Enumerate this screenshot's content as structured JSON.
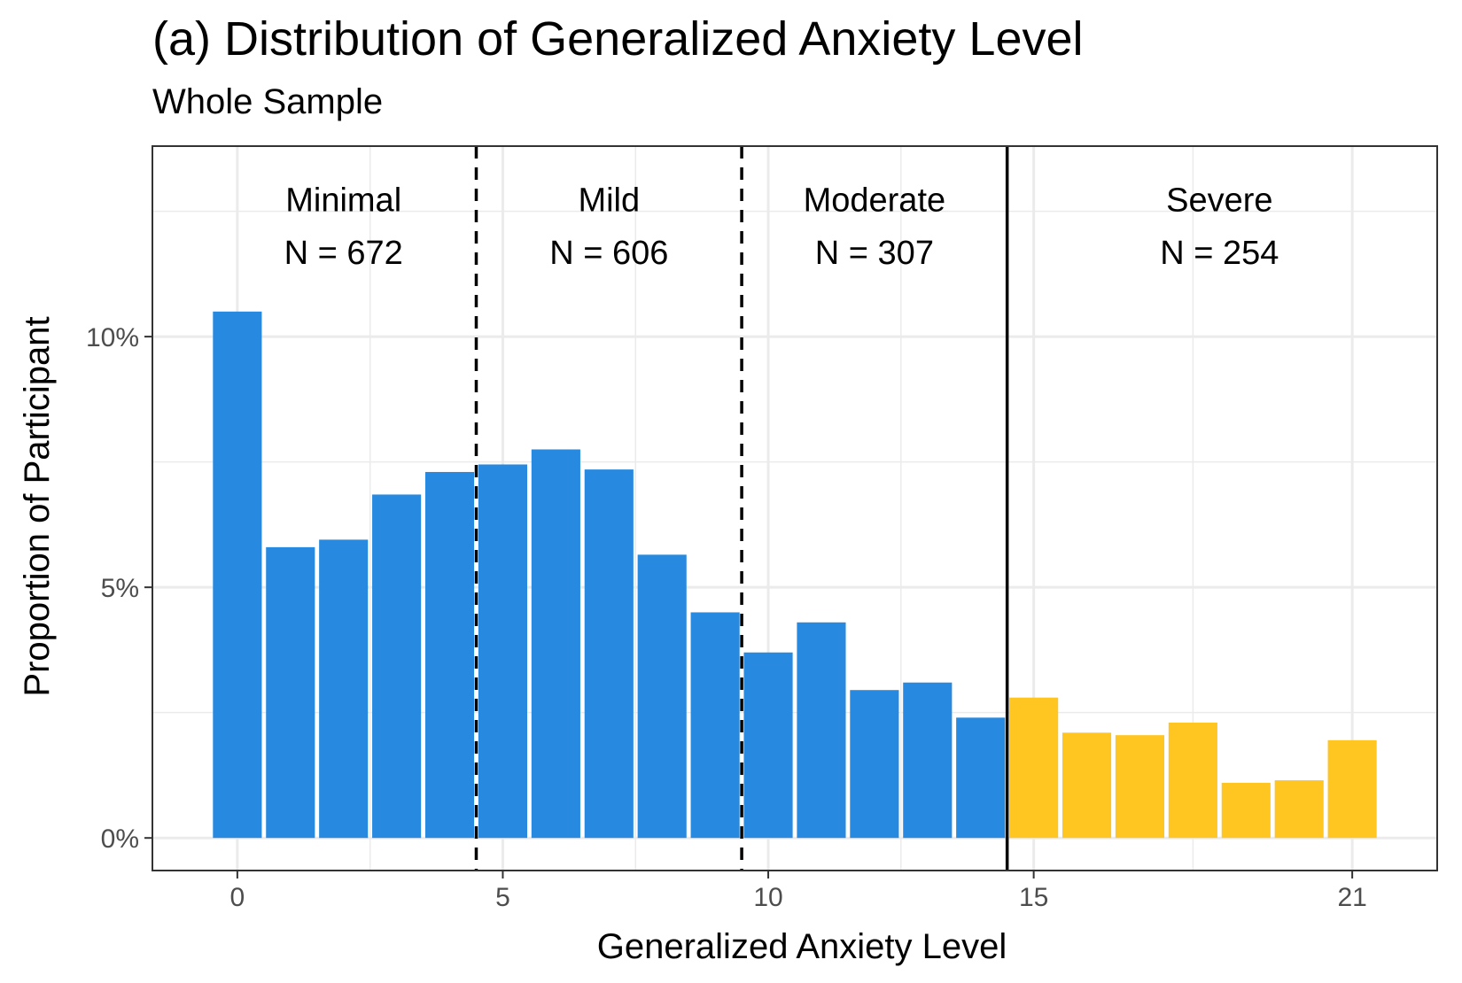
{
  "chart_data": {
    "type": "bar",
    "title": "(a) Distribution of Generalized Anxiety Level",
    "subtitle": "Whole Sample",
    "xlabel": "Generalized Anxiety Level",
    "ylabel": "Proportion of Participant",
    "x": [
      0,
      1,
      2,
      3,
      4,
      5,
      6,
      7,
      8,
      9,
      10,
      11,
      12,
      13,
      14,
      15,
      16,
      17,
      18,
      19,
      20,
      21
    ],
    "values": [
      10.5,
      5.8,
      5.95,
      6.85,
      7.3,
      7.45,
      7.75,
      7.35,
      5.65,
      4.5,
      3.7,
      4.3,
      2.95,
      3.1,
      2.4,
      2.8,
      2.1,
      2.05,
      2.3,
      1.1,
      1.15,
      1.95
    ],
    "severe_from": 15,
    "colors": {
      "normal": "#2789df",
      "severe": "#ffc622"
    },
    "xlim": [
      -1.6,
      22.6
    ],
    "ylim": [
      -0.65,
      13.8
    ],
    "x_ticks": [
      0,
      5,
      10,
      15,
      21
    ],
    "x_tick_labels": [
      "0",
      "5",
      "10",
      "15",
      "21"
    ],
    "y_ticks": [
      0,
      5,
      10
    ],
    "y_tick_labels": [
      "0%",
      "5%",
      "10%"
    ],
    "y_minor_ticks": [
      2.5,
      7.5,
      12.5
    ],
    "x_minor_ticks": [
      2.5,
      7.5,
      12.5,
      18
    ],
    "grid": true,
    "cutoffs": [
      {
        "x": 4.5,
        "style": "dashed"
      },
      {
        "x": 9.5,
        "style": "dashed"
      },
      {
        "x": 14.5,
        "style": "solid"
      }
    ],
    "regions": [
      {
        "name": "Minimal",
        "count": "N = 672",
        "x": 2
      },
      {
        "name": "Mild",
        "count": "N = 606",
        "x": 7
      },
      {
        "name": "Moderate",
        "count": "N = 307",
        "x": 12
      },
      {
        "name": "Severe",
        "count": "N = 254",
        "x": 18.5
      }
    ],
    "region_label_y": [
      12.5,
      11.45
    ]
  }
}
